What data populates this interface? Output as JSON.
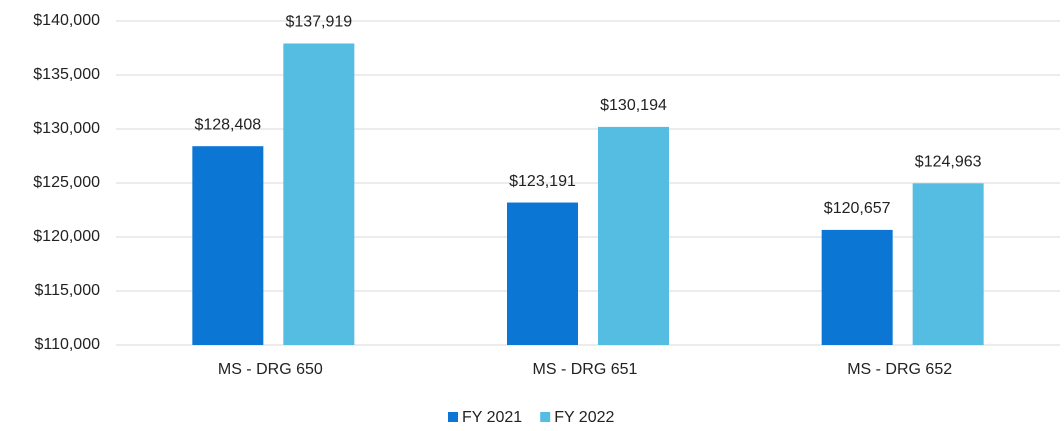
{
  "chart_data": {
    "type": "bar",
    "categories": [
      "MS - DRG 650",
      "MS - DRG 651",
      "MS - DRG 652"
    ],
    "series": [
      {
        "name": "FY 2021",
        "color": "#0b76d3",
        "values": [
          128408,
          123191,
          120657
        ],
        "value_labels": [
          "$128,408",
          "$123,191",
          "$120,657"
        ]
      },
      {
        "name": "FY 2022",
        "color": "#55bde2",
        "values": [
          137919,
          130194,
          124963
        ],
        "value_labels": [
          "$137,919",
          "$130,194",
          "$124,963"
        ]
      }
    ],
    "ylim": [
      110000,
      140000
    ],
    "yticks": [
      {
        "value": 110000,
        "label": "$110,000"
      },
      {
        "value": 115000,
        "label": "$115,000"
      },
      {
        "value": 120000,
        "label": "$120,000"
      },
      {
        "value": 125000,
        "label": "$125,000"
      },
      {
        "value": 130000,
        "label": "$130,000"
      },
      {
        "value": 135000,
        "label": "$135,000"
      },
      {
        "value": 140000,
        "label": "$140,000"
      }
    ],
    "grid": true,
    "legend": "bottom"
  }
}
